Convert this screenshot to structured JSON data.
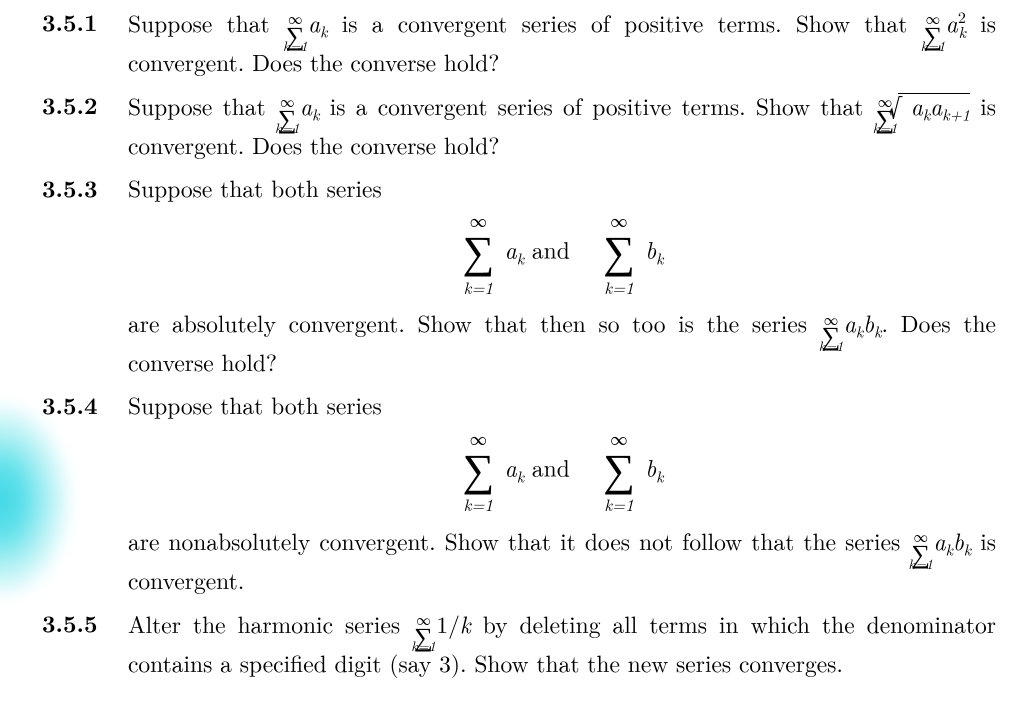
{
  "colors": {
    "text": "#000000",
    "background": "#ffffff",
    "glow_center": "#3ed8e5",
    "glow_fade": "#ffffff"
  },
  "typography": {
    "family": "Computer Modern / serif",
    "body_pt": 18,
    "bold_labels": true,
    "justify": true
  },
  "problems": [
    {
      "number": "3.5.1",
      "text_parts": {
        "p1a": "Suppose that ",
        "p1b": " is a convergent series of positive terms.  Show that ",
        "p1c": " is convergent.  Does the converse hold?"
      },
      "sum1": {
        "lower": "k=1",
        "upper": "∞",
        "term": "a_k"
      },
      "sum2": {
        "lower": "k=1",
        "upper": "∞",
        "term": "a_k^2"
      }
    },
    {
      "number": "3.5.2",
      "text_parts": {
        "p1a": "Suppose that ",
        "p1b": " is a convergent series of positive terms.  Show that ",
        "p1c": " is convergent.  Does the converse hold?"
      },
      "sum1": {
        "lower": "k=1",
        "upper": "∞",
        "term": "a_k"
      },
      "sum2": {
        "lower": "k=1",
        "upper": "∞",
        "term": "sqrt(a_k a_{k+1})"
      }
    },
    {
      "number": "3.5.3",
      "text_parts": {
        "intro": "Suppose that both series",
        "and": " and ",
        "after": "are absolutely convergent.  Show that then so too is the series ",
        "tail": ". Does the converse hold?"
      },
      "sumA": {
        "lower": "k=1",
        "upper": "∞",
        "term": "a_k"
      },
      "sumB": {
        "lower": "k=1",
        "upper": "∞",
        "term": "b_k"
      },
      "sumAB": {
        "lower": "k=1",
        "upper": "∞",
        "term": "a_k b_k"
      }
    },
    {
      "number": "3.5.4",
      "text_parts": {
        "intro": "Suppose that both series",
        "and": " and ",
        "after": "are nonabsolutely convergent.  Show that it does not follow that the series ",
        "tail": " is convergent."
      },
      "sumA": {
        "lower": "k=1",
        "upper": "∞",
        "term": "a_k"
      },
      "sumB": {
        "lower": "k=1",
        "upper": "∞",
        "term": "b_k"
      },
      "sumAB": {
        "lower": "k=1",
        "upper": "∞",
        "term": "a_k b_k"
      }
    },
    {
      "number": "3.5.5",
      "text_parts": {
        "p1a": "Alter the harmonic series ",
        "p1b": " by deleting all terms in which the denominator contains a specified digit (say 3).  Show that the new series converges."
      },
      "sum": {
        "lower": "k=1",
        "upper": "∞",
        "term": "1/k"
      }
    }
  ]
}
